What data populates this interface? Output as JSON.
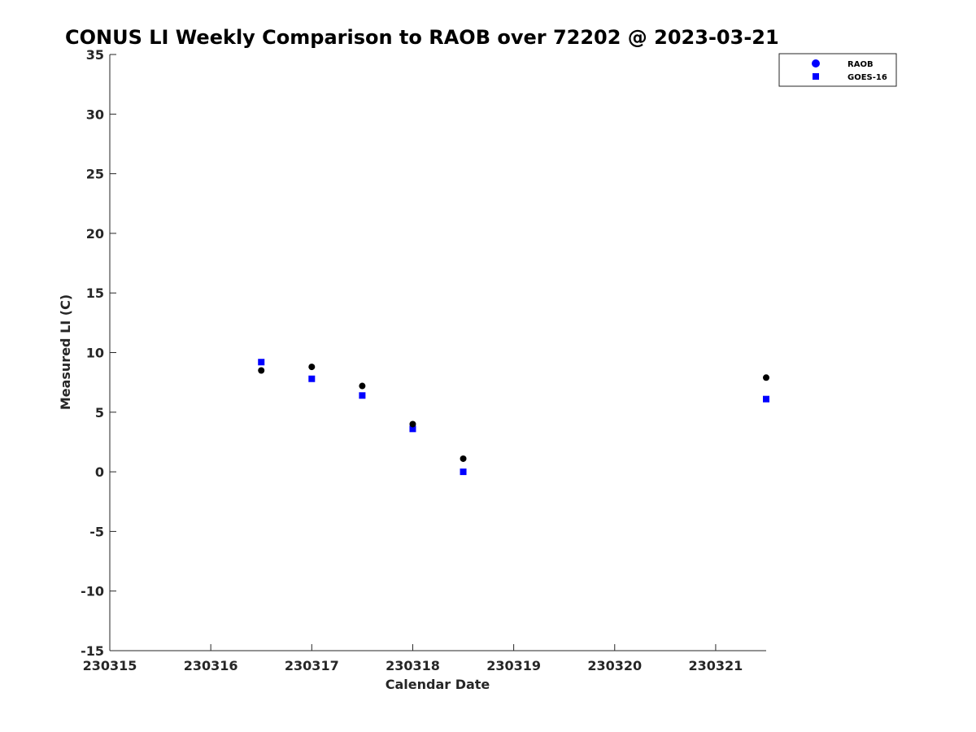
{
  "chart_data": {
    "type": "scatter",
    "title": "CONUS LI Weekly Comparison to RAOB over 72202 @ 2023-03-21",
    "xlabel": "Calendar Date",
    "ylabel": "Measured LI (C)",
    "xlim": [
      230315,
      230321.5
    ],
    "ylim": [
      -15,
      35
    ],
    "x_ticks": [
      230315,
      230316,
      230317,
      230318,
      230319,
      230320,
      230321
    ],
    "x_tick_labels": [
      "230315",
      "230316",
      "230317",
      "230318",
      "230319",
      "230320",
      "230321"
    ],
    "y_ticks": [
      -15,
      -10,
      -5,
      0,
      5,
      10,
      15,
      20,
      25,
      30,
      35
    ],
    "y_tick_labels": [
      "-15",
      "-10",
      "-5",
      "0",
      "5",
      "10",
      "15",
      "20",
      "25",
      "30",
      "35"
    ],
    "grid": false,
    "legend_position": "top-right",
    "series": [
      {
        "name": "RAOB",
        "marker": "circle",
        "color": "#000000",
        "legend_color": "#0000ff",
        "x": [
          230316.5,
          230317,
          230317.5,
          230318,
          230318.5,
          230321.5
        ],
        "y": [
          8.5,
          8.8,
          7.2,
          4.0,
          1.1,
          7.9
        ]
      },
      {
        "name": "GOES-16",
        "marker": "square",
        "color": "#0000ff",
        "legend_color": "#0000ff",
        "x": [
          230316.5,
          230317,
          230317.5,
          230318,
          230318.5,
          230321.5
        ],
        "y": [
          9.2,
          7.8,
          6.4,
          3.6,
          0.0,
          6.1
        ]
      }
    ]
  }
}
